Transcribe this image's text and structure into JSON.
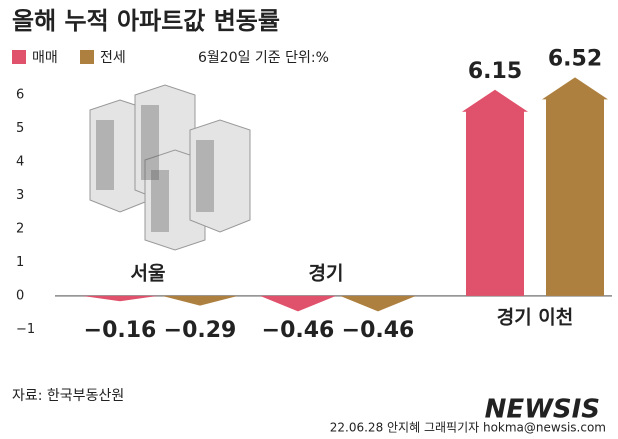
{
  "chart_data": {
    "type": "bar",
    "title": "올해 누적 아파트값 변동률",
    "note": "6월20일 기준 단위:%",
    "categories": [
      "서울",
      "경기",
      "경기 이천"
    ],
    "series": [
      {
        "name": "매매",
        "color": "#e0516b",
        "values": [
          -0.16,
          -0.46,
          6.15
        ],
        "value_labels": [
          "−0.16",
          "−0.46",
          "6.15"
        ]
      },
      {
        "name": "전세",
        "color": "#ae8040",
        "values": [
          -0.29,
          -0.46,
          6.52
        ],
        "value_labels": [
          "−0.29",
          "−0.46",
          "6.52"
        ]
      }
    ],
    "ylim": [
      -1.3,
      6.8
    ],
    "yticks": [
      {
        "value": -1,
        "label": "−1"
      },
      0,
      1,
      2,
      3,
      4,
      5,
      6
    ],
    "source": "자료: 한국부동산원",
    "credit": "22.06.28 안지혜 그래픽기자 hokma@newsis.com",
    "watermark": "NEWSIS"
  }
}
